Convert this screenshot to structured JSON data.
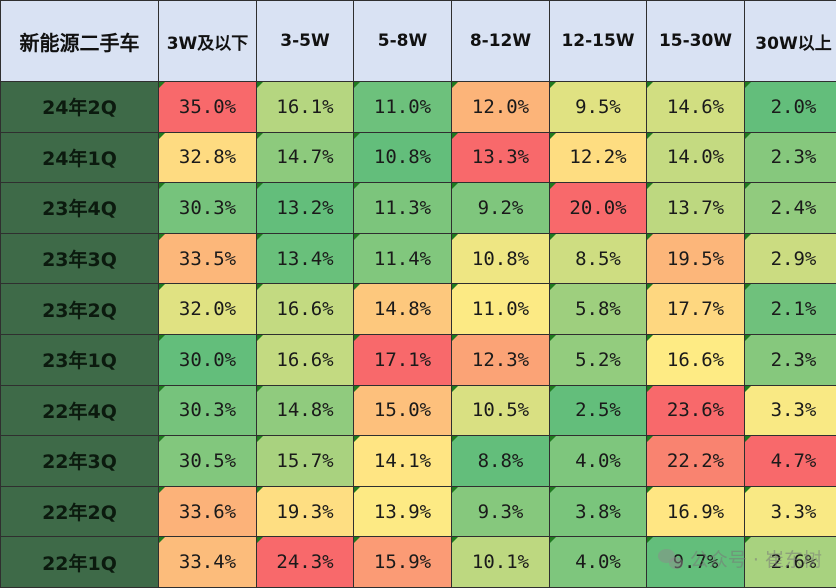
{
  "chart_data": {
    "type": "table",
    "corner_label": "新能源二手车",
    "columns": [
      "3W及以下",
      "3-5W",
      "5-8W",
      "8-12W",
      "12-15W",
      "15-30W",
      "30W以上"
    ],
    "rows": [
      {
        "label": "24年2Q",
        "values": [
          "35.0%",
          "16.1%",
          "11.0%",
          "12.0%",
          "9.5%",
          "14.6%",
          "2.0%"
        ]
      },
      {
        "label": "24年1Q",
        "values": [
          "32.8%",
          "14.7%",
          "10.8%",
          "13.3%",
          "12.2%",
          "14.0%",
          "2.3%"
        ]
      },
      {
        "label": "23年4Q",
        "values": [
          "30.3%",
          "13.2%",
          "11.3%",
          "9.2%",
          "20.0%",
          "13.7%",
          "2.4%"
        ]
      },
      {
        "label": "23年3Q",
        "values": [
          "33.5%",
          "13.4%",
          "11.4%",
          "10.8%",
          "8.5%",
          "19.5%",
          "2.9%"
        ]
      },
      {
        "label": "23年2Q",
        "values": [
          "32.0%",
          "16.6%",
          "14.8%",
          "11.0%",
          "5.8%",
          "17.7%",
          "2.1%"
        ]
      },
      {
        "label": "23年1Q",
        "values": [
          "30.0%",
          "16.6%",
          "17.1%",
          "12.3%",
          "5.2%",
          "16.6%",
          "2.3%"
        ]
      },
      {
        "label": "22年4Q",
        "values": [
          "30.3%",
          "14.8%",
          "15.0%",
          "10.5%",
          "2.5%",
          "23.6%",
          "3.3%"
        ]
      },
      {
        "label": "22年3Q",
        "values": [
          "30.5%",
          "15.7%",
          "14.1%",
          "8.8%",
          "4.0%",
          "22.2%",
          "4.7%"
        ]
      },
      {
        "label": "22年2Q",
        "values": [
          "33.6%",
          "19.3%",
          "13.9%",
          "9.3%",
          "3.8%",
          "16.9%",
          "3.3%"
        ]
      },
      {
        "label": "22年1Q",
        "values": [
          "33.4%",
          "24.3%",
          "15.9%",
          "10.1%",
          "4.0%",
          "9.7%",
          "2.6%"
        ]
      }
    ],
    "color_scale": {
      "low": "#63be7b",
      "mid": "#ffeb84",
      "high": "#f8696b",
      "scope": "per-column"
    }
  },
  "watermark": "公众号 · 崔东树"
}
